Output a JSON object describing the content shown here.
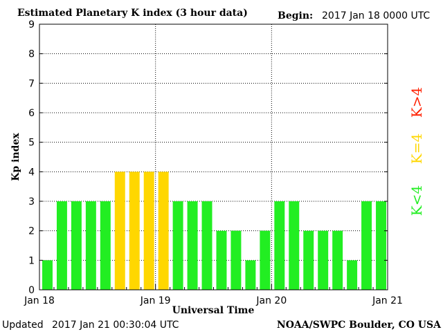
{
  "header": {
    "title": "Estimated Planetary K index (3 hour data)",
    "begin_label": "Begin:",
    "begin_value": "2017 Jan 18 0000 UTC"
  },
  "footer": {
    "updated_label": "Updated",
    "updated_value": "2017 Jan 21 00:30:04 UTC",
    "source": "NOAA/SWPC Boulder, CO USA"
  },
  "legend": [
    {
      "label": "K>4",
      "color": "#ff2000"
    },
    {
      "label": "K=4",
      "color": "#ffd700"
    },
    {
      "label": "K<4",
      "color": "#22ee22"
    }
  ],
  "chart_data": {
    "type": "bar",
    "title": "Estimated Planetary K index (3 hour data)",
    "xlabel": "Universal Time",
    "ylabel": "Kp index",
    "ylim": [
      0,
      9
    ],
    "yticks": [
      "0",
      "1",
      "2",
      "3",
      "4",
      "5",
      "6",
      "7",
      "8",
      "9"
    ],
    "xtick_labels": [
      "Jan 18",
      "Jan 19",
      "Jan 20",
      "Jan 21"
    ],
    "grid": "dotted, at each integer Kp and at each day boundary",
    "period": "3 hour intervals, 2017 Jan 18 0000 UTC to Jan 21 0000 UTC",
    "values": [
      1,
      3,
      3,
      3,
      3,
      4,
      4,
      4,
      4,
      3,
      3,
      3,
      2,
      2,
      1,
      2,
      3,
      3,
      2,
      2,
      2,
      1,
      3,
      3
    ],
    "colors": {
      "below_4": "#22ee22",
      "equal_4": "#ffd700",
      "above_4": "#ff2000"
    }
  }
}
